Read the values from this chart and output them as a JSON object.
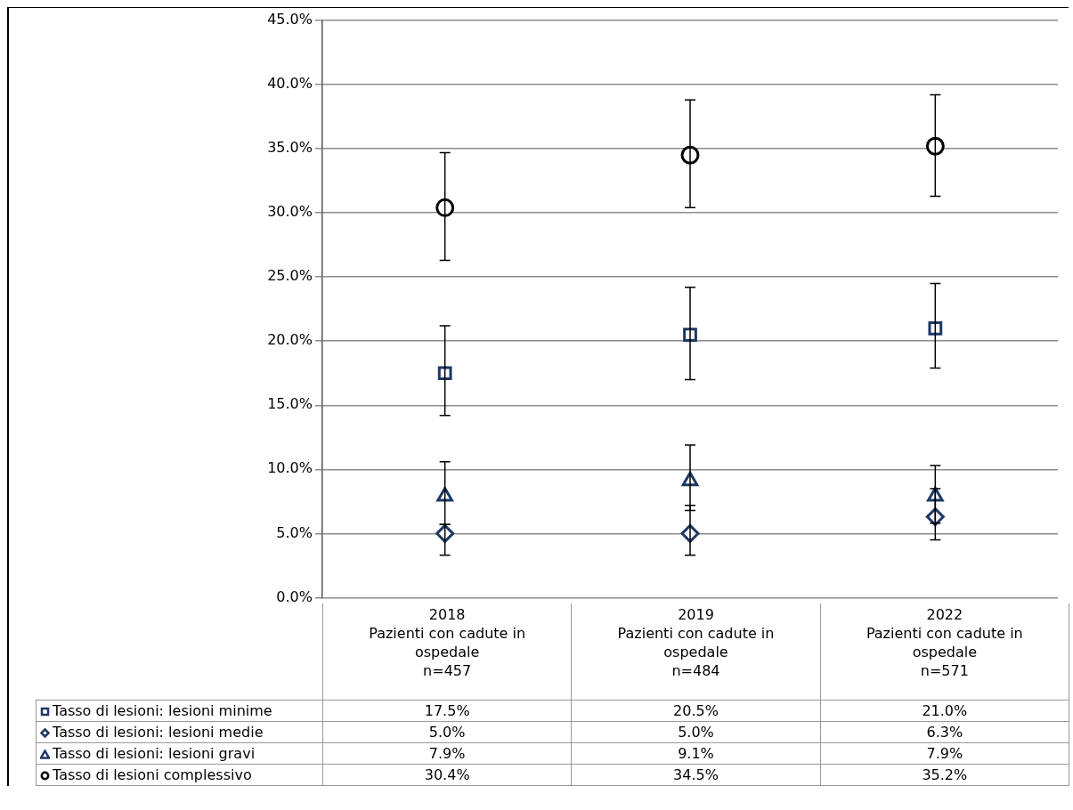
{
  "chart_data": {
    "type": "scatter",
    "categories": [
      "2018\nPazienti con cadute in ospedale\nn=457",
      "2019\nPazienti con cadute in ospedale\nn=484",
      "2022\nPazienti con cadute in ospedale\nn=571"
    ],
    "series": [
      {
        "name": "Tasso di lesioni: lesioni minime",
        "color": "#1f3864",
        "marker": "square",
        "values": [
          17.5,
          20.5,
          21.0
        ],
        "value_labels": [
          "17.5%",
          "20.5%",
          "21.0%"
        ],
        "errors": [
          [
            14.2,
            21.2
          ],
          [
            17.0,
            24.2
          ],
          [
            17.9,
            24.5
          ]
        ]
      },
      {
        "name": "Tasso di lesioni: lesioni medie",
        "color": "#1f3864",
        "marker": "diamond",
        "values": [
          5.0,
          5.0,
          6.3
        ],
        "value_labels": [
          "5.0%",
          "5.0%",
          "6.3%"
        ],
        "errors": [
          [
            3.3,
            5.7
          ],
          [
            3.3,
            7.2
          ],
          [
            4.5,
            8.5
          ]
        ]
      },
      {
        "name": "Tasso di lesioni: lesioni gravi",
        "color": "#1f3864",
        "marker": "triangle",
        "values": [
          7.9,
          9.1,
          7.9
        ],
        "value_labels": [
          "7.9%",
          "9.1%",
          "7.9%"
        ],
        "errors": [
          [
            5.7,
            10.6
          ],
          [
            6.8,
            11.9
          ],
          [
            5.8,
            10.3
          ]
        ]
      },
      {
        "name": "Tasso di lesioni complessivo",
        "color": "#000000",
        "marker": "circle",
        "values": [
          30.4,
          34.5,
          35.2
        ],
        "value_labels": [
          "30.4%",
          "34.5%",
          "35.2%"
        ],
        "errors": [
          [
            26.3,
            34.7
          ],
          [
            30.4,
            38.8
          ],
          [
            31.3,
            39.2
          ]
        ]
      }
    ],
    "ylim": [
      0,
      45
    ],
    "yticks": [
      {
        "value": 0,
        "label": "0.0%"
      },
      {
        "value": 5,
        "label": "5.0%"
      },
      {
        "value": 10,
        "label": "10.0%"
      },
      {
        "value": 15,
        "label": "15.0%"
      },
      {
        "value": 20,
        "label": "20.0%"
      },
      {
        "value": 25,
        "label": "25.0%"
      },
      {
        "value": 30,
        "label": "30.0%"
      },
      {
        "value": 35,
        "label": "35.0%"
      },
      {
        "value": 40,
        "label": "40.0%"
      },
      {
        "value": 45,
        "label": "45.0%"
      }
    ],
    "grid": "y",
    "legend": "bottom"
  }
}
